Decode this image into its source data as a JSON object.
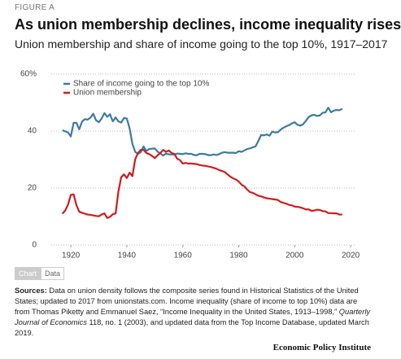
{
  "figure_label": "FIGURE A",
  "tabs": [
    "Chart",
    "Data"
  ],
  "sources": {
    "label": "Sources:",
    "parts": [
      "Data on union density follows the composite series found in Historical Statistics of the United States; updated to 2017 from unionstats.com. Income inequality (share of income to top 10%) data are from Thomas Piketty and Emmanuel Saez, “Income Inequality in the United States, 1913–1998,”",
      "Quarterly Journal of Economics",
      "118, no. 1 (2003), and updated data from the Top Income Database, updated March 2019."
    ]
  },
  "footer": "Economic Policy Institute",
  "chart_data": {
    "type": "line",
    "title": "As union membership declines, income inequality rises",
    "subtitle": "Union membership and share of income going to the top 10%, 1917–2017",
    "x": [
      1917,
      1918,
      1919,
      1920,
      1921,
      1922,
      1923,
      1924,
      1925,
      1926,
      1927,
      1928,
      1929,
      1930,
      1931,
      1932,
      1933,
      1934,
      1935,
      1936,
      1937,
      1938,
      1939,
      1940,
      1941,
      1942,
      1943,
      1944,
      1945,
      1946,
      1947,
      1948,
      1949,
      1950,
      1951,
      1952,
      1953,
      1954,
      1955,
      1956,
      1957,
      1958,
      1959,
      1960,
      1961,
      1962,
      1963,
      1964,
      1965,
      1966,
      1967,
      1968,
      1969,
      1970,
      1971,
      1972,
      1973,
      1974,
      1975,
      1976,
      1977,
      1978,
      1979,
      1980,
      1981,
      1982,
      1983,
      1984,
      1985,
      1986,
      1987,
      1988,
      1989,
      1990,
      1991,
      1992,
      1993,
      1994,
      1995,
      1996,
      1997,
      1998,
      1999,
      2000,
      2001,
      2002,
      2003,
      2004,
      2005,
      2006,
      2007,
      2008,
      2009,
      2010,
      2011,
      2012,
      2013,
      2014,
      2015,
      2016,
      2017
    ],
    "series": [
      {
        "name": "Share of income going to the top 10%",
        "color": "#3e7aa1",
        "values": [
          40.3,
          39.9,
          39.5,
          38.1,
          42.9,
          42.9,
          40.6,
          43.3,
          44.2,
          44.0,
          44.7,
          46.1,
          43.8,
          43.1,
          44.4,
          46.3,
          45.0,
          45.9,
          43.4,
          44.8,
          43.4,
          43.0,
          44.6,
          44.4,
          41.0,
          35.5,
          32.7,
          32.0,
          32.6,
          34.6,
          33.0,
          33.7,
          33.8,
          33.9,
          32.8,
          32.1,
          31.4,
          32.1,
          31.8,
          31.8,
          31.7,
          32.1,
          32.0,
          31.9,
          32.2,
          32.0,
          32.0,
          31.6,
          31.5,
          32.0,
          32.0,
          31.9,
          31.6,
          31.5,
          31.8,
          31.6,
          31.9,
          32.4,
          32.6,
          32.4,
          32.4,
          32.4,
          32.3,
          32.9,
          32.7,
          33.2,
          33.7,
          33.9,
          34.3,
          34.6,
          36.5,
          38.6,
          38.5,
          38.8,
          38.4,
          39.8,
          39.5,
          39.6,
          40.5,
          41.2,
          41.7,
          42.1,
          42.7,
          43.1,
          42.2,
          41.9,
          42.4,
          43.6,
          44.9,
          45.5,
          45.7,
          45.3,
          45.5,
          46.4,
          46.6,
          48.2,
          46.6,
          47.2,
          47.4,
          47.3,
          47.8
        ]
      },
      {
        "name": "Union membership",
        "color": "#d01c1f",
        "values": [
          11.0,
          12.1,
          14.2,
          17.6,
          17.8,
          14.0,
          11.7,
          11.3,
          11.0,
          10.7,
          10.6,
          10.4,
          10.2,
          10.1,
          10.7,
          11.1,
          9.5,
          9.9,
          10.8,
          11.1,
          18.8,
          23.8,
          24.8,
          23.5,
          25.4,
          24.2,
          30.1,
          32.3,
          33.4,
          33.4,
          32.3,
          31.9,
          31.3,
          30.5,
          31.5,
          32.3,
          33.4,
          32.7,
          33.2,
          32.3,
          32.0,
          30.3,
          29.8,
          28.6,
          28.8,
          28.6,
          28.6,
          28.5,
          28.4,
          28.1,
          27.9,
          27.8,
          27.6,
          27.4,
          27.1,
          26.8,
          26.3,
          26.0,
          25.6,
          24.8,
          24.0,
          23.4,
          23.0,
          22.3,
          21.2,
          20.6,
          19.5,
          18.6,
          18.3,
          17.8,
          17.3,
          17.1,
          16.7,
          16.4,
          16.3,
          16.1,
          16.0,
          15.8,
          15.1,
          14.8,
          14.5,
          14.1,
          13.9,
          13.5,
          13.4,
          13.2,
          12.9,
          12.5,
          12.5,
          12.0,
          12.1,
          12.4,
          12.3,
          11.9,
          11.8,
          11.2,
          11.2,
          11.1,
          11.1,
          10.7,
          10.7
        ]
      }
    ],
    "xlim": [
      1913,
      2022
    ],
    "xticks": [
      1920,
      1940,
      1960,
      1980,
      2000,
      2020
    ],
    "ylim": [
      0,
      60
    ],
    "yticks": [
      0,
      20,
      40,
      {
        "value": 60,
        "label": "60%"
      }
    ],
    "grid": true,
    "legend": "upper left"
  }
}
